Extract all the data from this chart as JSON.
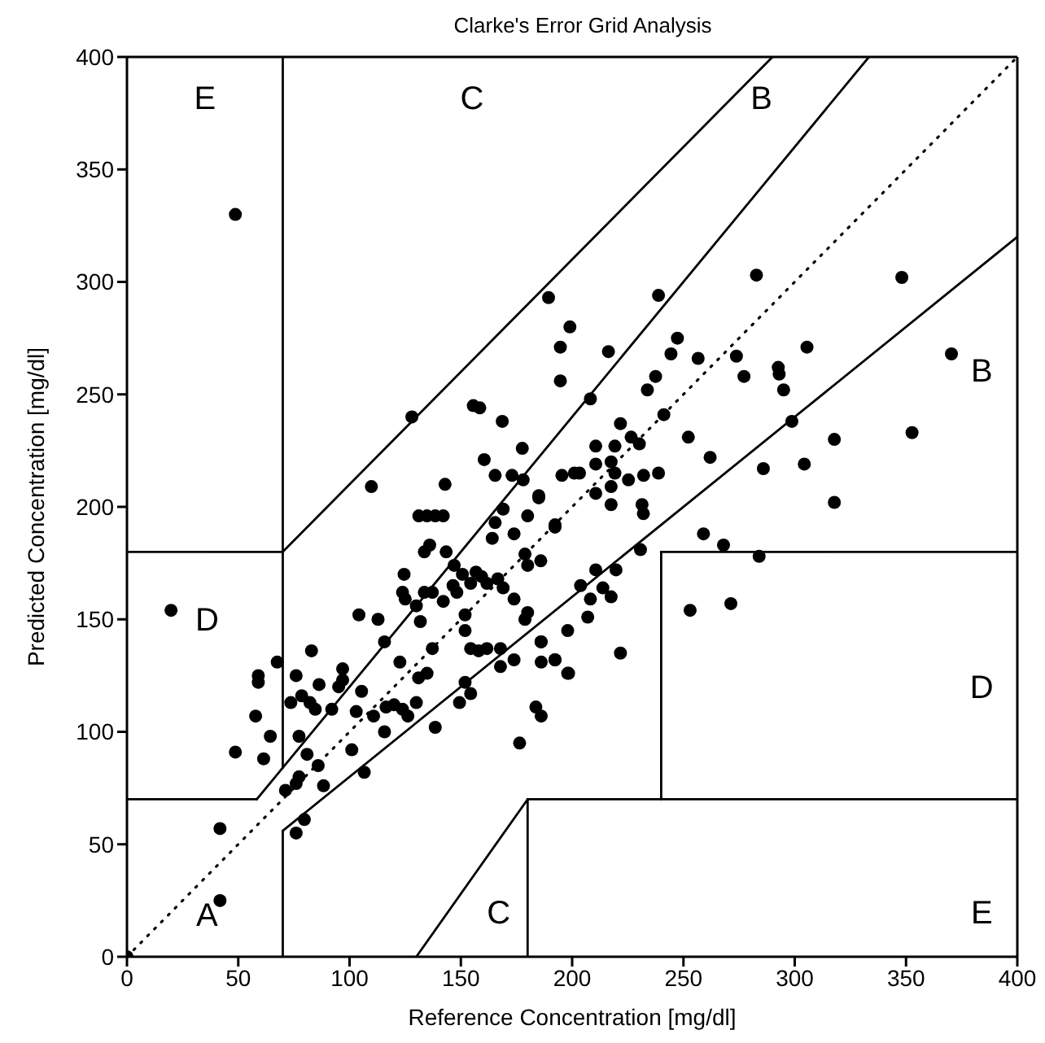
{
  "chart_data": {
    "type": "scatter",
    "title": "Clarke's Error Grid Analysis",
    "xlabel": "Reference Concentration [mg/dl]",
    "ylabel": "Predicted Concentration [mg/dl]",
    "xlim": [
      0,
      400
    ],
    "ylim": [
      0,
      400
    ],
    "xticks": [
      0,
      50,
      100,
      150,
      200,
      250,
      300,
      350,
      400
    ],
    "yticks": [
      0,
      50,
      100,
      150,
      200,
      250,
      300,
      350,
      400
    ],
    "grid": false,
    "series": [
      {
        "color": "#000000",
        "marker": "circle",
        "x": [
          0,
          48.7,
          19.8,
          41.8,
          41.8,
          189.4,
          199,
          194.7,
          194.7,
          155.6,
          158.5,
          168.6,
          128,
          177.6,
          160.5,
          165.4,
          173,
          178,
          109.8,
          142.9,
          195.4,
          201,
          185,
          238.8,
          216.3,
          208.2,
          282.8,
          348.1,
          247.3,
          244.4,
          256.6,
          273.8,
          277.2,
          292.6,
          293,
          295,
          305.5,
          370.4,
          352.7,
          317.8,
          298.7,
          237.5,
          233.8,
          241.2,
          221.7,
          252.2,
          226.5,
          230.2,
          219.2,
          210.6,
          262,
          285.9,
          304.3,
          317.8,
          203.3,
          210.6,
          217.5,
          219.2,
          225.3,
          232.1,
          238.8,
          217.5,
          210.6,
          259,
          268,
          284,
          253,
          271.3,
          231.4,
          232,
          230.7,
          217.5,
          192.3,
          210.6,
          219.7,
          203.8,
          213.8,
          208.2,
          217.5,
          207,
          198,
          192.3,
          198,
          221.7,
          186,
          48.7,
          61.4,
          64.4,
          57.8,
          59,
          59,
          67.5,
          82.9,
          76,
          86.3,
          96.9,
          96.9,
          95.1,
          73.6,
          78.5,
          82.2,
          84.6,
          92,
          77.3,
          80.9,
          85.9,
          76,
          77.3,
          88.3,
          79.7,
          76,
          71.2,
          103,
          105.4,
          110.8,
          101,
          106.6,
          115.7,
          116.4,
          120,
          123.8,
          126.2,
          130,
          115.7,
          122.6,
          131,
          134.8,
          137.2,
          138.5,
          104.2,
          112.8,
          123.8,
          125,
          130,
          131.8,
          133.6,
          137.2,
          142.1,
          124.5,
          131.1,
          134.8,
          138.5,
          142.1,
          133.6,
          136,
          143.4,
          147,
          150.7,
          154.4,
          156.8,
          146.5,
          148.2,
          151.9,
          151.9,
          159.3,
          161.7,
          166.6,
          169,
          173.9,
          154.4,
          158,
          161.7,
          151.9,
          149.4,
          154.4,
          165.4,
          169,
          164.1,
          173.9,
          180,
          185,
          192.3,
          178.8,
          180,
          185.9,
          178.8,
          180,
          167.8,
          173.9,
          167.8,
          186.1,
          186.1,
          192.3,
          198.4,
          183.7,
          186.1,
          176.4
        ],
        "values": [
          0,
          330,
          154,
          57,
          25,
          293,
          280,
          271,
          256,
          245,
          244,
          238,
          240,
          226,
          221,
          214,
          214,
          212,
          209,
          210,
          214,
          215,
          205,
          294,
          269,
          248,
          303,
          302,
          275,
          268,
          266,
          267,
          258,
          262,
          259,
          252,
          271,
          268,
          233,
          230,
          238,
          258,
          252,
          241,
          237,
          231,
          231,
          228,
          227,
          227,
          222,
          217,
          219,
          202,
          215,
          219,
          220,
          215,
          212,
          214,
          215,
          209,
          206,
          188,
          183,
          178,
          154,
          157,
          201,
          197,
          181,
          201,
          192,
          172,
          172,
          165,
          164,
          159,
          160,
          151,
          145,
          132,
          126,
          135,
          140,
          91,
          88,
          98,
          107,
          122,
          125,
          131,
          136,
          125,
          121,
          128,
          123,
          120,
          113,
          116,
          113,
          110,
          110,
          98,
          90,
          85,
          77,
          80,
          76,
          61,
          55,
          74,
          109,
          118,
          107,
          92,
          82,
          100,
          111,
          112,
          110,
          107,
          113,
          140,
          131,
          124,
          126,
          137,
          102,
          152,
          150,
          162,
          159,
          156,
          149,
          162,
          162,
          158,
          170,
          196,
          196,
          196,
          196,
          180,
          183,
          180,
          174,
          170,
          166,
          171,
          165,
          162,
          152,
          145,
          169,
          166,
          168,
          164,
          159,
          137,
          136,
          137,
          122,
          113,
          117,
          193,
          199,
          186,
          188,
          196,
          204,
          191,
          179,
          174,
          176,
          150,
          153,
          129,
          132,
          137,
          140,
          131,
          132,
          126,
          111,
          107,
          95
        ]
      },
      {
        "type": "line",
        "color": "#000000",
        "line_style": "dotted",
        "x": [
          0,
          400
        ],
        "values": [
          0,
          400
        ]
      },
      {
        "type": "line",
        "color": "#000000",
        "x": [
          0,
          58.33
        ],
        "values": [
          70,
          70
        ]
      },
      {
        "type": "line",
        "color": "#000000",
        "x": [
          58.33,
          333.33
        ],
        "values": [
          70,
          400
        ]
      },
      {
        "type": "line",
        "color": "#000000",
        "x": [
          70,
          70
        ],
        "values": [
          84,
          400
        ]
      },
      {
        "type": "line",
        "color": "#000000",
        "x": [
          0,
          70
        ],
        "values": [
          180,
          180
        ]
      },
      {
        "type": "line",
        "color": "#000000",
        "x": [
          70,
          290
        ],
        "values": [
          180,
          400
        ]
      },
      {
        "type": "line",
        "color": "#000000",
        "x": [
          70,
          70
        ],
        "values": [
          0,
          56
        ]
      },
      {
        "type": "line",
        "color": "#000000",
        "x": [
          70,
          400
        ],
        "values": [
          56,
          320
        ]
      },
      {
        "type": "line",
        "color": "#000000",
        "x": [
          180,
          180
        ],
        "values": [
          0,
          70
        ]
      },
      {
        "type": "line",
        "color": "#000000",
        "x": [
          180,
          400
        ],
        "values": [
          70,
          70
        ]
      },
      {
        "type": "line",
        "color": "#000000",
        "x": [
          240,
          240
        ],
        "values": [
          70,
          180
        ]
      },
      {
        "type": "line",
        "color": "#000000",
        "x": [
          240,
          400
        ],
        "values": [
          180,
          180
        ]
      },
      {
        "type": "line",
        "color": "#000000",
        "x": [
          130,
          180
        ],
        "values": [
          0,
          70
        ]
      }
    ],
    "annotations": [
      "E",
      "C",
      "B",
      "B",
      "D",
      "D",
      "A",
      "C",
      "E"
    ]
  }
}
